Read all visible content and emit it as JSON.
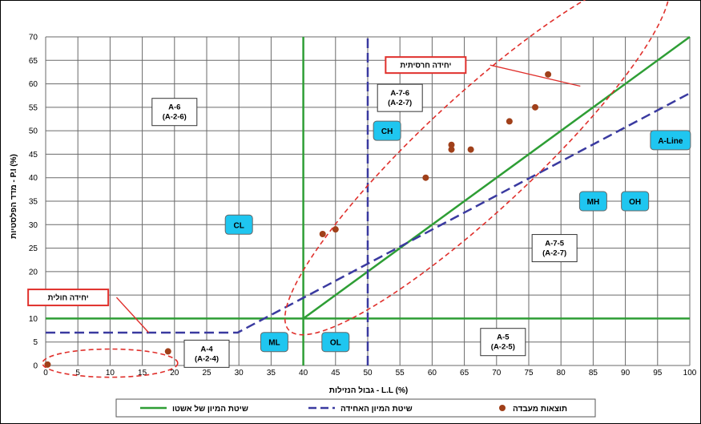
{
  "chart_data": {
    "type": "scatter",
    "title": "",
    "xlabel": "גבול הנזילות - L.L (%)",
    "ylabel": "מדד הפלסטיות - P.I (%)",
    "xlim": [
      0,
      100
    ],
    "ylim": [
      0,
      70
    ],
    "xticks": [
      0,
      5,
      10,
      15,
      20,
      25,
      30,
      35,
      40,
      45,
      50,
      55,
      60,
      65,
      70,
      75,
      80,
      85,
      90,
      95,
      100
    ],
    "yticks": [
      0,
      5,
      10,
      15,
      20,
      25,
      30,
      35,
      40,
      45,
      50,
      55,
      60,
      65,
      70
    ],
    "grid": true,
    "legend_position": "bottom",
    "series": [
      {
        "name": "שיטת המיון של אשטו",
        "kind": "line",
        "color": "#2e9e35",
        "segments": [
          [
            [
              40,
              0
            ],
            [
              40,
              70
            ]
          ],
          [
            [
              0,
              10
            ],
            [
              100,
              10
            ]
          ],
          [
            [
              40,
              10
            ],
            [
              100,
              70
            ]
          ]
        ]
      },
      {
        "name": "שיטת המיון האחידה",
        "kind": "dashed-line",
        "color": "#3a3aa0",
        "segments": [
          [
            [
              0,
              7
            ],
            [
              29.8,
              7
            ],
            [
              100,
              58
            ]
          ],
          [
            [
              50,
              0
            ],
            [
              50,
              70
            ]
          ]
        ]
      },
      {
        "name": "תוצאות מעבדה",
        "kind": "points",
        "color": "#a0401a",
        "points": [
          [
            0.3,
            0.2
          ],
          [
            19,
            3
          ],
          [
            43,
            28
          ],
          [
            45,
            29
          ],
          [
            59,
            40
          ],
          [
            63,
            46
          ],
          [
            63,
            47
          ],
          [
            66,
            46
          ],
          [
            72,
            52
          ],
          [
            76,
            55
          ],
          [
            78,
            62
          ]
        ]
      }
    ],
    "regions": [
      {
        "label": "A-6\n(A-2-6)",
        "x": 20,
        "y": 54,
        "style": "box"
      },
      {
        "label": "A-7-6\n(A-2-7)",
        "x": 55,
        "y": 57,
        "style": "box"
      },
      {
        "label": "A-7-5\n(A-2-7)",
        "x": 79,
        "y": 25,
        "style": "box"
      },
      {
        "label": "A-4\n(A-2-4)",
        "x": 25,
        "y": 2.5,
        "style": "box"
      },
      {
        "label": "A-5\n(A-2-5)",
        "x": 71,
        "y": 5,
        "style": "box"
      },
      {
        "label": "CL",
        "x": 30,
        "y": 30,
        "style": "tag"
      },
      {
        "label": "CH",
        "x": 53,
        "y": 50,
        "style": "tag"
      },
      {
        "label": "ML",
        "x": 35.5,
        "y": 5,
        "style": "tag"
      },
      {
        "label": "OL",
        "x": 45,
        "y": 5,
        "style": "tag"
      },
      {
        "label": "MH",
        "x": 85,
        "y": 35,
        "style": "tag"
      },
      {
        "label": "OH",
        "x": 91.5,
        "y": 35,
        "style": "tag"
      },
      {
        "label": "A-Line",
        "x": 97,
        "y": 48,
        "style": "tag"
      }
    ],
    "callouts": [
      {
        "label": "יחידה חרסיתית",
        "x": 59,
        "y": 64
      },
      {
        "label": "יחידה חולית",
        "x": 3.5,
        "y": 14.5
      }
    ],
    "ellipses": [
      {
        "cx": 67,
        "cy": 45,
        "rx_axis": 40,
        "ry_axis": 12,
        "angle_deg": -43
      },
      {
        "cx": 10,
        "cy": 0.5,
        "rx_axis": 10.5,
        "ry_axis": 3
      }
    ],
    "leaders": [
      {
        "from": [
          69,
          64
        ],
        "to": [
          83,
          59.5
        ]
      },
      {
        "from": [
          11,
          14.5
        ],
        "to": [
          16,
          7
        ]
      }
    ]
  },
  "colors": {
    "grid": "#6a6a6a",
    "tag_fill": "#1fc6f0",
    "callout_border": "#e0302c",
    "ellipse": "#e0302c"
  }
}
